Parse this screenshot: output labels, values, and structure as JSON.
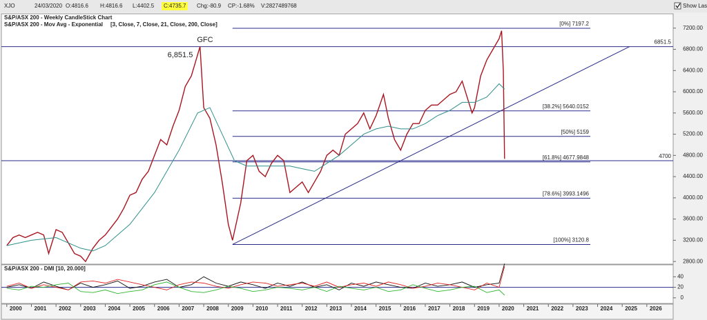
{
  "header": {
    "symbol": "XJO",
    "date": "24/03/2020",
    "fields": [
      "O:4816.6",
      "H:4816.6",
      "L:4402.5"
    ],
    "highlight": "C:4735.7",
    "fields2": [
      "Chg:-80.9",
      "CP:-1.68%",
      "V:2827489768"
    ],
    "show_last": "Show Last"
  },
  "chart_data": [
    {
      "type": "line",
      "title": "S&P/ASX 200 - Weekly CandleStick Chart",
      "subtitle": "S&P/ASX 200 - Mov Avg - Exponential",
      "subtitle_params": "[3, Close, 7, Close, 21, Close, 200, Close]",
      "xlim": [
        1999.78,
        2027.07
      ],
      "xticks": [
        2000,
        2001,
        2002,
        2003,
        2004,
        2005,
        2006,
        2007,
        2008,
        2009,
        2010,
        2011,
        2012,
        2013,
        2014,
        2015,
        2016,
        2017,
        2018,
        2019,
        2020,
        2021,
        2022,
        2023,
        2024,
        2025,
        2026
      ],
      "ylim": [
        2750,
        7470
      ],
      "yticks": [
        {
          "value": 2800,
          "label": "2800.00"
        },
        {
          "value": 3200,
          "label": "3200.00"
        },
        {
          "value": 3600,
          "label": "3600.00"
        },
        {
          "value": 4000,
          "label": "4000.00"
        },
        {
          "value": 4400,
          "label": "4400.00"
        },
        {
          "value": 4800,
          "label": "4800.00"
        },
        {
          "value": 5200,
          "label": "5200.00"
        },
        {
          "value": 5600,
          "label": "5600.00"
        },
        {
          "value": 6000,
          "label": "6000.00"
        },
        {
          "value": 6400,
          "label": "6400.00"
        },
        {
          "value": 6800,
          "label": "6800.00"
        },
        {
          "value": 7200,
          "label": "7200.00"
        }
      ],
      "series": [
        {
          "color": "#a8141e",
          "x": [
            2000,
            2000.25,
            2000.5,
            2000.75,
            2001,
            2001.25,
            2001.5,
            2001.7,
            2002,
            2002.25,
            2002.5,
            2002.75,
            2003,
            2003.2,
            2003.5,
            2003.75,
            2004,
            2004.25,
            2004.5,
            2004.75,
            2005,
            2005.25,
            2005.5,
            2005.75,
            2006,
            2006.25,
            2006.5,
            2006.75,
            2007,
            2007.25,
            2007.5,
            2007.85,
            2008,
            2008.25,
            2008.5,
            2008.75,
            2009,
            2009.17,
            2009.5,
            2009.75,
            2010,
            2010.25,
            2010.5,
            2010.75,
            2011,
            2011.25,
            2011.5,
            2011.75,
            2012,
            2012.25,
            2012.5,
            2012.75,
            2013,
            2013.25,
            2013.5,
            2013.75,
            2014,
            2014.25,
            2014.5,
            2014.75,
            2015,
            2015.3,
            2015.5,
            2015.75,
            2016,
            2016.25,
            2016.5,
            2016.75,
            2017,
            2017.25,
            2017.5,
            2017.75,
            2018,
            2018.25,
            2018.5,
            2018.9,
            2019,
            2019.25,
            2019.5,
            2019.75,
            2020,
            2020.1,
            2020.17,
            2020.22
          ],
          "values": [
            3100,
            3250,
            3300,
            3250,
            3300,
            3350,
            3300,
            2950,
            3400,
            3350,
            3150,
            2950,
            2900,
            2800,
            3050,
            3200,
            3300,
            3450,
            3600,
            3800,
            4050,
            4100,
            4350,
            4500,
            4800,
            5100,
            5000,
            5350,
            5650,
            6100,
            6300,
            6851.5,
            5700,
            5500,
            5000,
            4300,
            3500,
            3200,
            3900,
            4700,
            4800,
            4500,
            4400,
            4650,
            4800,
            4700,
            4100,
            4200,
            4300,
            4100,
            4300,
            4500,
            4800,
            4900,
            4800,
            5200,
            5300,
            5400,
            5600,
            5300,
            5550,
            5950,
            5500,
            5100,
            4900,
            5200,
            5400,
            5400,
            5650,
            5750,
            5750,
            5850,
            5950,
            6000,
            6200,
            5600,
            5700,
            6300,
            6600,
            6800,
            7000,
            7150,
            6400,
            4735.7
          ]
        },
        {
          "color": "#2e8f8a",
          "x": [
            2000,
            2001,
            2002,
            2003,
            2003.5,
            2004,
            2005,
            2006,
            2007,
            2007.75,
            2008.25,
            2008.75,
            2009.25,
            2009.75,
            2010.5,
            2011.5,
            2012,
            2012.5,
            2013,
            2013.5,
            2014,
            2014.5,
            2015,
            2015.5,
            2016,
            2016.5,
            2017,
            2017.5,
            2018,
            2018.5,
            2019,
            2019.5,
            2020,
            2020.22
          ],
          "values": [
            3100,
            3200,
            3250,
            3050,
            3000,
            3100,
            3500,
            4100,
            4900,
            5600,
            5700,
            5200,
            4700,
            4600,
            4600,
            4600,
            4550,
            4500,
            4650,
            4800,
            5000,
            5200,
            5300,
            5350,
            5300,
            5300,
            5400,
            5550,
            5650,
            5800,
            5800,
            5900,
            6150,
            6050
          ]
        }
      ],
      "fib_levels": [
        {
          "label": "[0%] 7197.2",
          "value": 7197.2
        },
        {
          "label": "[38.2%] 5640.0152",
          "value": 5640.0152
        },
        {
          "label": "[50%] 5159",
          "value": 5159
        },
        {
          "label": "[61.8%] 4677.9848",
          "value": 4677.9848
        },
        {
          "label": "[78.6%] 3993.1496",
          "value": 3993.1496
        },
        {
          "label": "[100%] 3120.8",
          "value": 3120.8
        }
      ],
      "levels": [
        6851.5,
        4700
      ],
      "trendline": {
        "x": [
          2009.17,
          2025.3
        ],
        "y": [
          3120.8,
          6851.5
        ]
      },
      "annotations": [
        "GFC",
        "6,851.5"
      ],
      "line_color": "#2a2a8a"
    },
    {
      "type": "line",
      "title": "S&P/ASX 200 - DMI [10, 20.000]",
      "ylim": [
        -10.7,
        62.7
      ],
      "yticks": [
        0,
        20,
        40
      ],
      "threshold": 20,
      "x": [
        2000,
        2000.5,
        2001,
        2001.5,
        2002,
        2002.5,
        2003,
        2003.5,
        2004,
        2004.5,
        2005,
        2005.5,
        2006,
        2006.5,
        2007,
        2007.5,
        2008,
        2008.5,
        2009,
        2009.5,
        2010,
        2010.5,
        2011,
        2011.5,
        2012,
        2012.5,
        2013,
        2013.5,
        2014,
        2014.5,
        2015,
        2015.5,
        2016,
        2016.5,
        2017,
        2017.5,
        2018,
        2018.5,
        2019,
        2019.5,
        2020,
        2020.22
      ],
      "series": [
        {
          "color": "#111111",
          "values": [
            20,
            25,
            18,
            30,
            22,
            15,
            28,
            20,
            25,
            32,
            18,
            22,
            30,
            35,
            20,
            25,
            40,
            28,
            22,
            30,
            25,
            18,
            28,
            22,
            30,
            20,
            25,
            15,
            28,
            22,
            30,
            25,
            20,
            18,
            28,
            22,
            25,
            30,
            20,
            25,
            28,
            65
          ]
        },
        {
          "color": "#e0201e",
          "values": [
            22,
            28,
            18,
            25,
            20,
            15,
            30,
            32,
            28,
            35,
            30,
            25,
            20,
            15,
            25,
            30,
            28,
            22,
            18,
            25,
            30,
            28,
            22,
            25,
            28,
            22,
            30,
            20,
            25,
            28,
            22,
            30,
            25,
            18,
            22,
            28,
            25,
            20,
            15,
            28,
            20,
            60
          ]
        },
        {
          "color": "#2fb52f",
          "values": [
            18,
            15,
            22,
            20,
            25,
            28,
            12,
            10,
            15,
            8,
            12,
            15,
            25,
            30,
            20,
            12,
            10,
            15,
            22,
            18,
            12,
            15,
            20,
            18,
            15,
            20,
            12,
            22,
            18,
            15,
            20,
            12,
            15,
            25,
            18,
            12,
            15,
            20,
            22,
            10,
            15,
            5
          ]
        }
      ]
    }
  ]
}
